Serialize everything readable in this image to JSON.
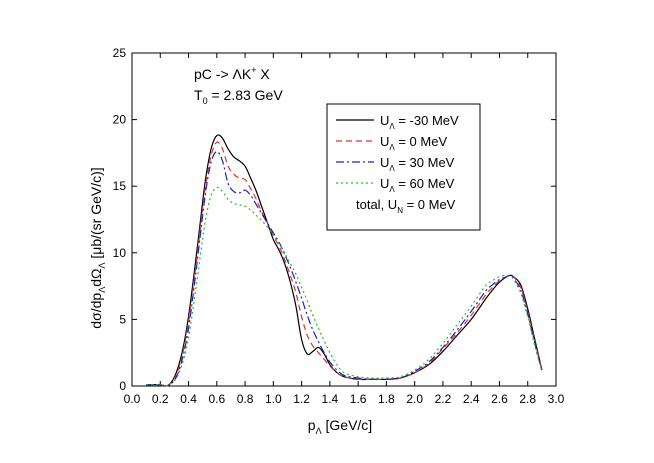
{
  "chart_data": {
    "type": "line",
    "annotation": {
      "reaction_prefix": "pC -> ",
      "reaction_lambda": "Λ",
      "reaction_k": "K",
      "reaction_k_sup": "+",
      "reaction_suffix": " X",
      "energy_symbol": "T",
      "energy_sub": "0",
      "energy_value": " = 2.83 GeV"
    },
    "xlabel": {
      "main": "p",
      "sub": "Λ",
      "rest": " [GeV/c]"
    },
    "ylabel": {
      "p1": "dσ/dp",
      "s1": "Λ",
      "p2": "dΩ",
      "s2": "Λ",
      "p3": " [μb/(sr GeV/c)]"
    },
    "xlim": [
      0.0,
      3.0
    ],
    "ylim": [
      0,
      25
    ],
    "xticks": [
      "0.0",
      "0.2",
      "0.4",
      "0.6",
      "0.8",
      "1.0",
      "1.2",
      "1.4",
      "1.6",
      "1.8",
      "2.0",
      "2.2",
      "2.4",
      "2.6",
      "2.8",
      "3.0"
    ],
    "yticks": [
      "0",
      "5",
      "10",
      "15",
      "20",
      "25"
    ],
    "grid": false,
    "legend_position": "top-right",
    "series": [
      {
        "name": "U_Λ = -30 MeV",
        "label_main": "U",
        "label_sub": "Λ",
        "label_rest": " = -30 MeV",
        "color": "#000000",
        "dash": "solid",
        "x": [
          0.1,
          0.2,
          0.24,
          0.28,
          0.32,
          0.36,
          0.4,
          0.44,
          0.48,
          0.52,
          0.56,
          0.6,
          0.64,
          0.68,
          0.72,
          0.76,
          0.8,
          0.84,
          0.88,
          0.92,
          0.96,
          1.0,
          1.04,
          1.08,
          1.12,
          1.16,
          1.2,
          1.24,
          1.28,
          1.32,
          1.36,
          1.4,
          1.45,
          1.5,
          1.6,
          1.7,
          1.8,
          1.9,
          2.0,
          2.1,
          2.2,
          2.3,
          2.4,
          2.5,
          2.55,
          2.6,
          2.65,
          2.68,
          2.7,
          2.75,
          2.8,
          2.85,
          2.9
        ],
        "y": [
          0.1,
          0.1,
          0.0,
          0.3,
          1.2,
          2.8,
          5.2,
          8.5,
          12.0,
          15.5,
          17.8,
          18.8,
          18.6,
          17.8,
          17.2,
          16.9,
          16.5,
          15.6,
          14.6,
          13.4,
          12.2,
          11.0,
          10.2,
          9.2,
          7.8,
          6.0,
          3.5,
          2.4,
          2.6,
          2.9,
          2.4,
          1.6,
          1.0,
          0.7,
          0.5,
          0.5,
          0.5,
          0.6,
          1.0,
          1.6,
          2.6,
          3.8,
          5.0,
          6.5,
          7.2,
          7.8,
          8.2,
          8.3,
          8.2,
          7.6,
          5.8,
          3.5,
          1.2
        ]
      },
      {
        "name": "U_Λ = 0 MeV",
        "label_main": "U",
        "label_sub": "Λ",
        "label_rest": " = 0 MeV",
        "color": "#e03030",
        "dash": "6,4",
        "x": [
          0.1,
          0.2,
          0.24,
          0.28,
          0.32,
          0.36,
          0.4,
          0.44,
          0.48,
          0.52,
          0.56,
          0.6,
          0.64,
          0.68,
          0.72,
          0.76,
          0.8,
          0.84,
          0.88,
          0.92,
          0.96,
          1.0,
          1.04,
          1.08,
          1.12,
          1.16,
          1.2,
          1.24,
          1.28,
          1.32,
          1.36,
          1.4,
          1.45,
          1.5,
          1.6,
          1.7,
          1.8,
          1.9,
          2.0,
          2.1,
          2.2,
          2.3,
          2.4,
          2.5,
          2.55,
          2.6,
          2.65,
          2.68,
          2.7,
          2.75,
          2.8,
          2.85,
          2.9
        ],
        "y": [
          0.1,
          0.1,
          0.0,
          0.3,
          1.0,
          2.5,
          4.8,
          8.0,
          11.5,
          15.0,
          17.3,
          18.3,
          17.8,
          16.5,
          15.9,
          15.6,
          15.5,
          14.8,
          14.0,
          13.0,
          12.2,
          11.3,
          10.5,
          9.5,
          8.3,
          7.0,
          5.2,
          3.8,
          3.0,
          2.5,
          2.0,
          1.5,
          1.0,
          0.7,
          0.5,
          0.5,
          0.5,
          0.6,
          1.0,
          1.7,
          2.8,
          4.0,
          5.3,
          6.8,
          7.4,
          7.9,
          8.2,
          8.3,
          8.2,
          7.4,
          5.6,
          3.3,
          1.2
        ]
      },
      {
        "name": "U_Λ = 30 MeV",
        "label_main": "U",
        "label_sub": "Λ",
        "label_rest": " = 30 MeV",
        "color": "#2020c0",
        "dash": "8,3,2,3",
        "x": [
          0.1,
          0.2,
          0.24,
          0.28,
          0.32,
          0.36,
          0.4,
          0.44,
          0.48,
          0.52,
          0.56,
          0.6,
          0.64,
          0.68,
          0.72,
          0.76,
          0.8,
          0.84,
          0.88,
          0.92,
          0.96,
          1.0,
          1.04,
          1.08,
          1.12,
          1.16,
          1.2,
          1.24,
          1.28,
          1.32,
          1.36,
          1.4,
          1.45,
          1.5,
          1.6,
          1.7,
          1.8,
          1.9,
          2.0,
          2.1,
          2.2,
          2.3,
          2.4,
          2.5,
          2.55,
          2.6,
          2.65,
          2.68,
          2.7,
          2.75,
          2.8,
          2.85,
          2.9
        ],
        "y": [
          0.1,
          0.1,
          0.0,
          0.2,
          0.8,
          2.2,
          4.3,
          7.5,
          11.0,
          14.5,
          16.8,
          17.6,
          16.9,
          15.2,
          14.6,
          14.5,
          14.7,
          14.3,
          13.6,
          12.9,
          12.2,
          11.5,
          10.8,
          9.9,
          8.9,
          7.8,
          6.6,
          5.3,
          4.2,
          3.3,
          2.5,
          1.8,
          1.2,
          0.8,
          0.6,
          0.5,
          0.5,
          0.6,
          1.1,
          1.8,
          2.9,
          4.2,
          5.6,
          7.1,
          7.6,
          8.0,
          8.2,
          8.3,
          8.1,
          7.2,
          5.4,
          3.2,
          1.1
        ]
      },
      {
        "name": "U_Λ = 60 MeV",
        "label_main": "U",
        "label_sub": "Λ",
        "label_rest": " = 60 MeV",
        "color": "#20c020",
        "dash": "2,3",
        "x": [
          0.1,
          0.2,
          0.24,
          0.28,
          0.32,
          0.36,
          0.4,
          0.44,
          0.48,
          0.52,
          0.56,
          0.6,
          0.64,
          0.68,
          0.72,
          0.76,
          0.8,
          0.84,
          0.88,
          0.92,
          0.96,
          1.0,
          1.04,
          1.08,
          1.12,
          1.16,
          1.2,
          1.24,
          1.28,
          1.32,
          1.36,
          1.4,
          1.45,
          1.5,
          1.6,
          1.7,
          1.8,
          1.9,
          2.0,
          2.1,
          2.2,
          2.3,
          2.4,
          2.5,
          2.55,
          2.6,
          2.65,
          2.68,
          2.7,
          2.75,
          2.8,
          2.85,
          2.9
        ],
        "y": [
          0.1,
          0.1,
          0.0,
          0.2,
          0.7,
          1.8,
          3.6,
          6.4,
          9.5,
          12.5,
          14.3,
          14.9,
          14.6,
          14.0,
          13.7,
          13.6,
          13.5,
          13.2,
          12.8,
          12.4,
          11.9,
          11.3,
          10.7,
          10.0,
          9.2,
          8.4,
          7.4,
          6.4,
          5.3,
          4.3,
          3.4,
          2.5,
          1.6,
          1.0,
          0.7,
          0.6,
          0.6,
          0.7,
          1.2,
          2.0,
          3.2,
          4.6,
          6.0,
          7.5,
          7.9,
          8.2,
          8.3,
          8.2,
          8.0,
          7.0,
          5.2,
          3.0,
          1.1
        ]
      }
    ],
    "legend_extra": {
      "main": "total, U",
      "sub": "N",
      "rest": " = 0 MeV"
    }
  }
}
